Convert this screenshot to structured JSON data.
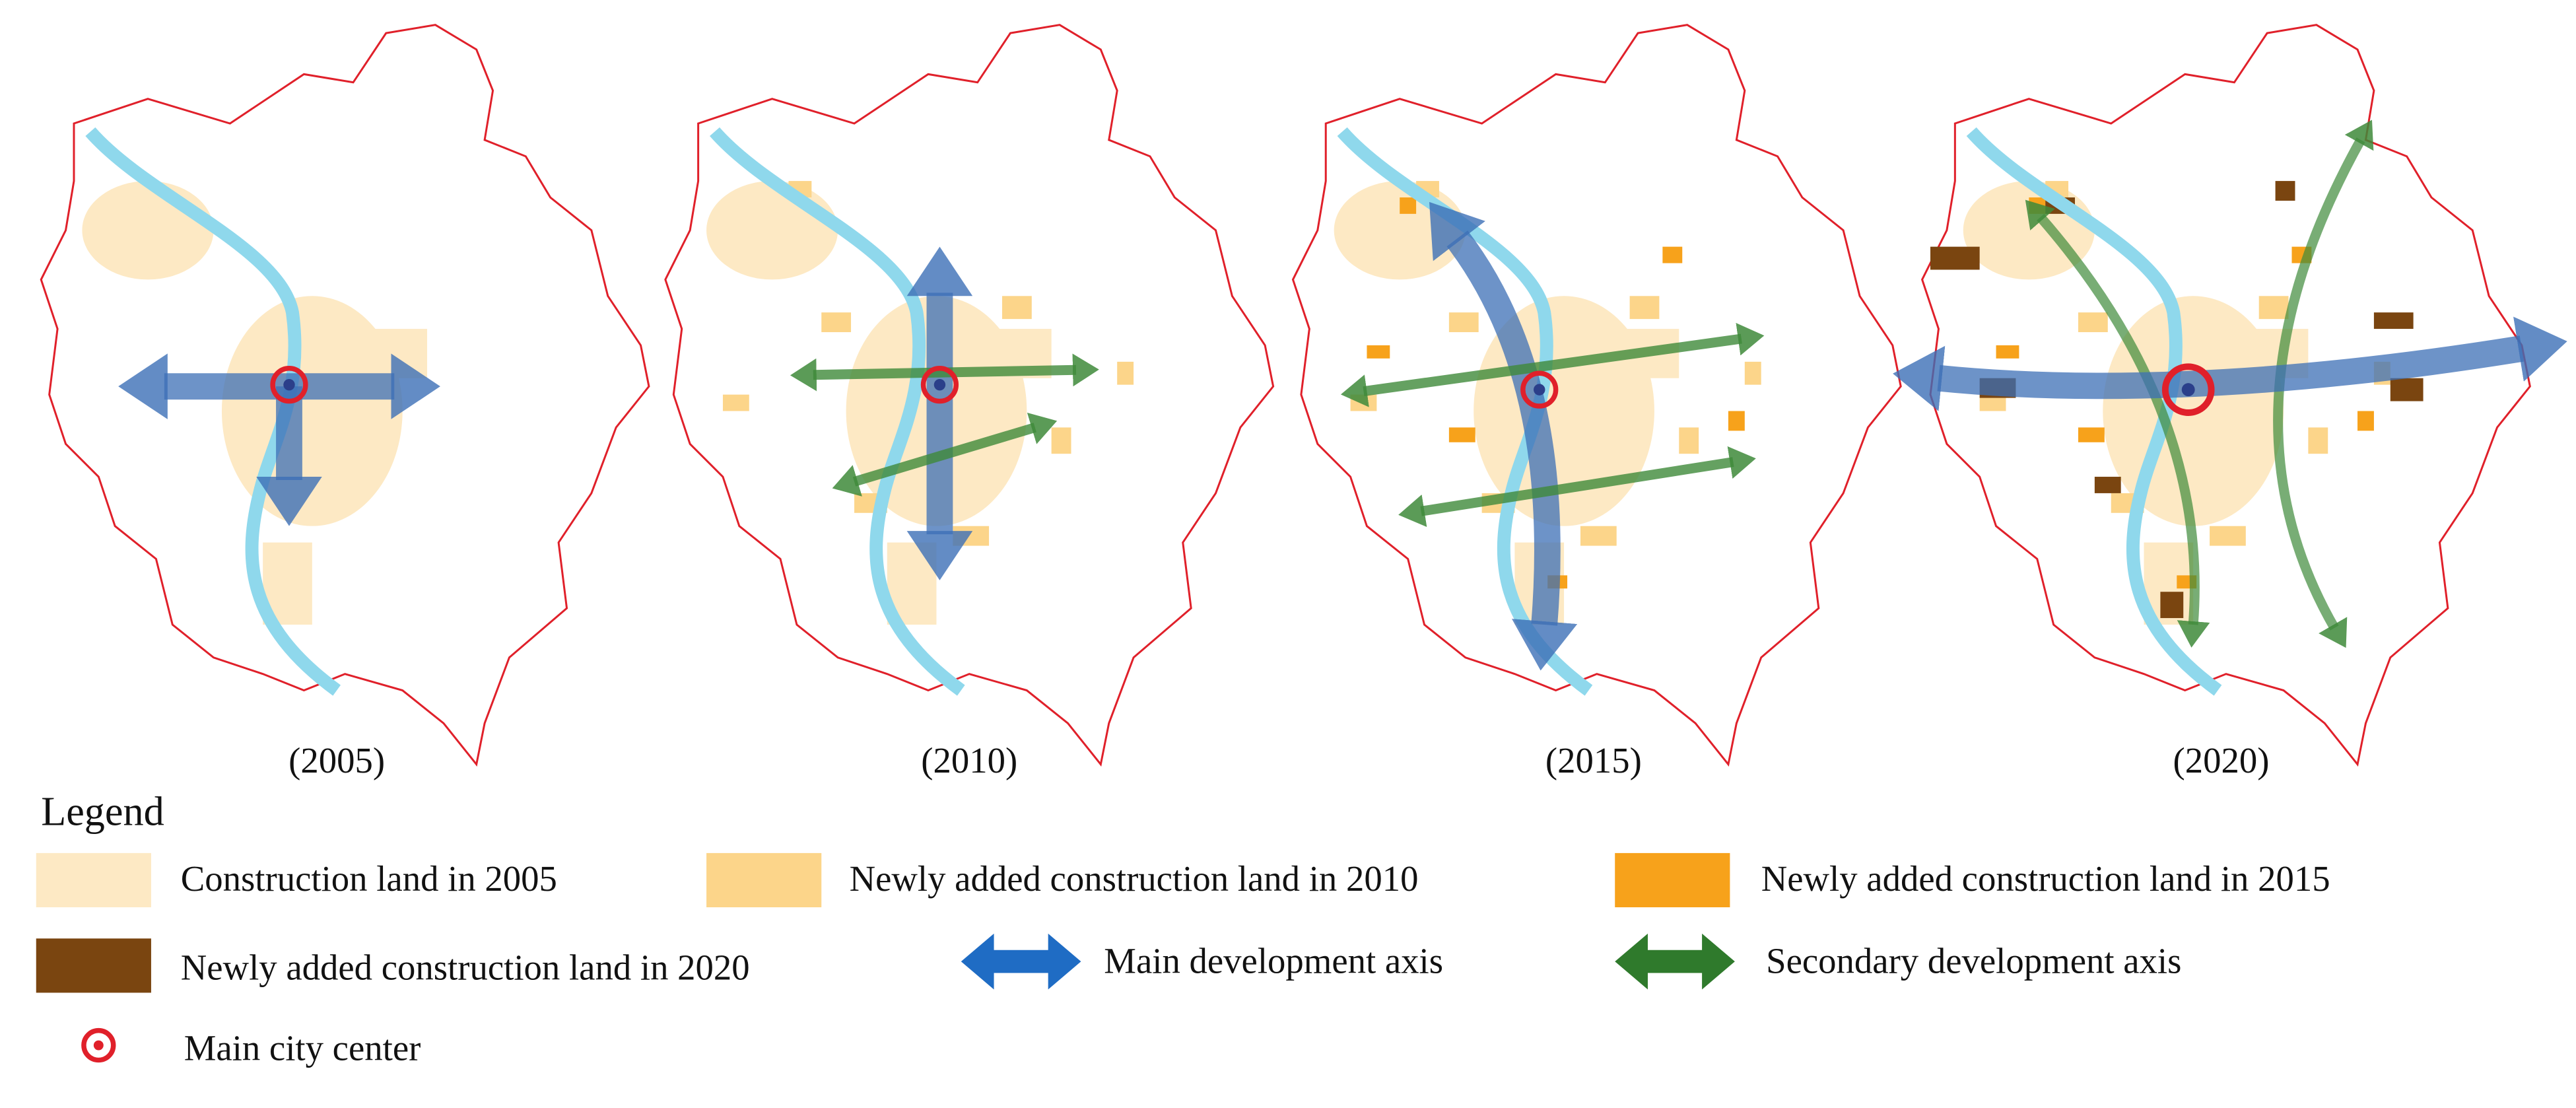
{
  "panels": [
    {
      "label": "(2005)"
    },
    {
      "label": "(2010)"
    },
    {
      "label": "(2015)"
    },
    {
      "label": "(2020)"
    }
  ],
  "legend": {
    "title": "Legend",
    "items": [
      {
        "label": "Construction land in 2005"
      },
      {
        "label": "Newly added construction land in 2010"
      },
      {
        "label": "Newly added construction land in 2015"
      },
      {
        "label": "Newly added construction land in 2020"
      },
      {
        "label": "Main development axis"
      },
      {
        "label": "Secondary development axis"
      },
      {
        "label": "Main city center"
      }
    ]
  }
}
